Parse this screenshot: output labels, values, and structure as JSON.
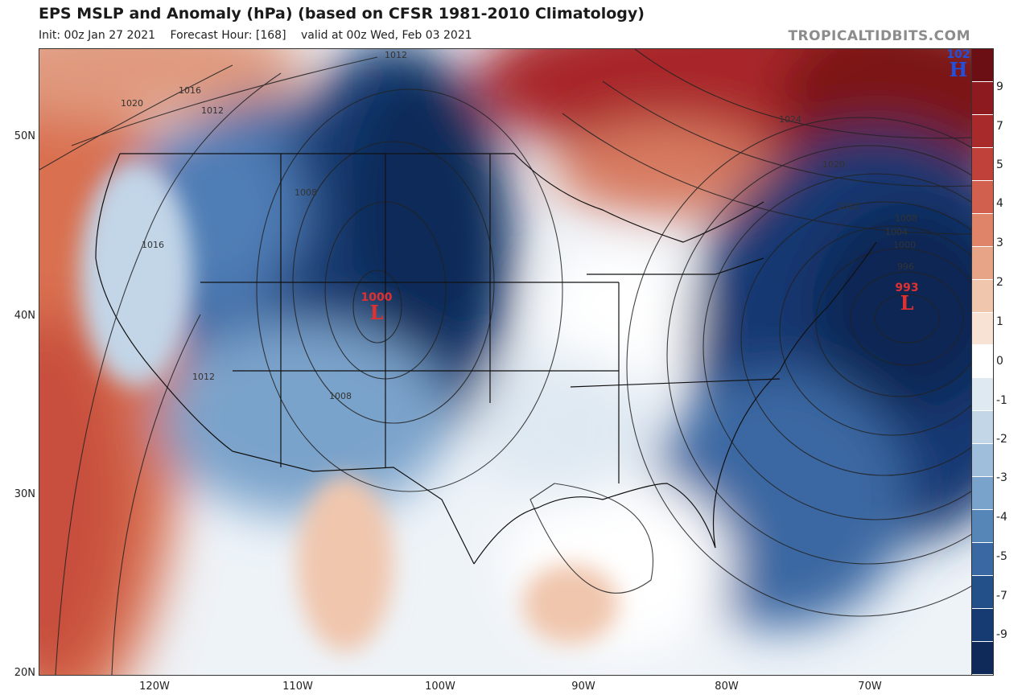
{
  "header": {
    "title": "EPS MSLP and Anomaly (hPa) (based on CFSR 1981-2010 Climatology)",
    "init": "Init: 00z Jan 27 2021",
    "forecast_hour": "Forecast Hour: [168]",
    "valid": "valid at 00z Wed, Feb 03 2021",
    "brand": "TROPICALTIDBITS.COM"
  },
  "axes": {
    "lat_labels": [
      "50N",
      "40N",
      "30N",
      "20N"
    ],
    "lon_labels": [
      "120W",
      "110W",
      "100W",
      "90W",
      "80W",
      "70W"
    ]
  },
  "colorbar": {
    "ticks": [
      "9",
      "7",
      "5",
      "4",
      "3",
      "2",
      "1",
      "0",
      "-1",
      "-2",
      "-3",
      "-4",
      "-5",
      "-7",
      "-9"
    ],
    "colors": [
      "#6b0f14",
      "#8c1a1e",
      "#a82a2a",
      "#c0403a",
      "#d2604f",
      "#df8468",
      "#e8a487",
      "#f0c6ad",
      "#f7e2d4",
      "#ffffff",
      "#dfe9f2",
      "#c2d6e8",
      "#9fbedb",
      "#7aa3cb",
      "#5685b8",
      "#3a68a2",
      "#24508a",
      "#163b72",
      "#0f2a58"
    ]
  },
  "systems": {
    "low_west": {
      "value": "1000",
      "symbol": "L",
      "color": "#e03030"
    },
    "low_east": {
      "value": "993",
      "symbol": "L",
      "color": "#e03030"
    },
    "high_ne": {
      "value": "102",
      "symbol": "H",
      "color": "#2050e0"
    }
  },
  "isobar_labels": [
    "1012",
    "1016",
    "1012",
    "1020",
    "1008",
    "1016",
    "1012",
    "1008",
    "1024",
    "1020",
    "1012",
    "1008",
    "1004",
    "1000",
    "996"
  ]
}
